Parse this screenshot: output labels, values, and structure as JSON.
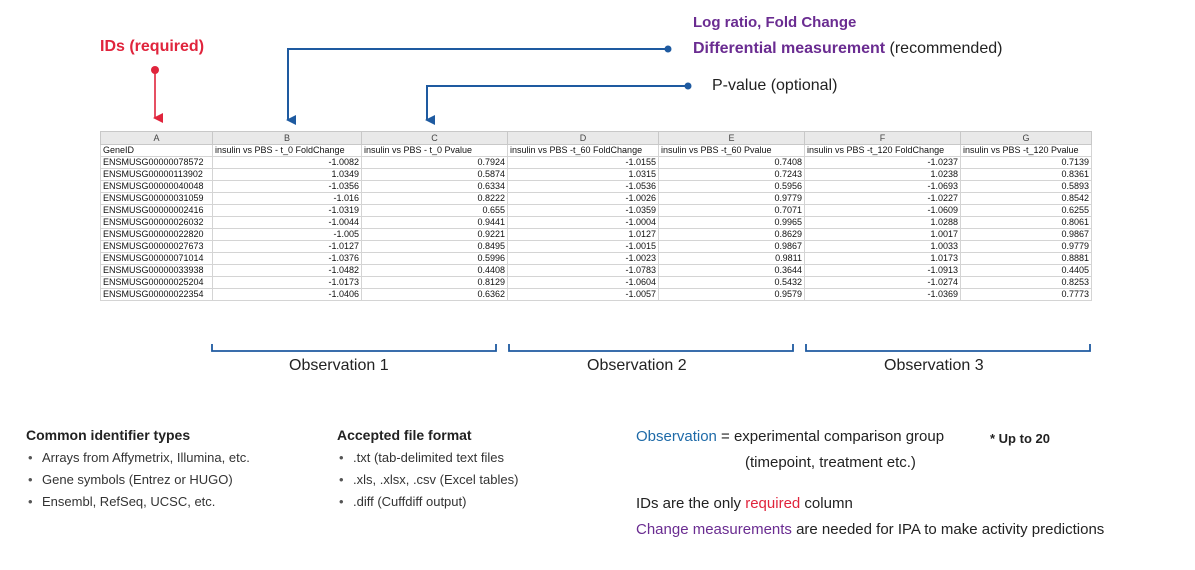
{
  "callouts": {
    "ids": "IDs (required)",
    "log_ratio": "Log ratio, Fold Change",
    "differential_strong": "Differential measurement",
    "differential_rest": " (recommended)",
    "pvalue": "P-value (optional)"
  },
  "sheet": {
    "column_letters": [
      "A",
      "B",
      "C",
      "D",
      "E",
      "F",
      "G"
    ],
    "headers": [
      "GeneID",
      "insulin vs PBS - t_0 FoldChange",
      "insulin vs PBS - t_0 Pvalue",
      "insulin vs PBS -t_60 FoldChange",
      "insulin vs PBS -t_60 Pvalue",
      "insulin vs PBS -t_120 FoldChange",
      "insulin vs PBS -t_120 Pvalue"
    ],
    "rows": [
      [
        "ENSMUSG00000078572",
        "-1.0082",
        "0.7924",
        "-1.0155",
        "0.7408",
        "-1.0237",
        "0.7139"
      ],
      [
        "ENSMUSG00000113902",
        "1.0349",
        "0.5874",
        "1.0315",
        "0.7243",
        "1.0238",
        "0.8361"
      ],
      [
        "ENSMUSG00000040048",
        "-1.0356",
        "0.6334",
        "-1.0536",
        "0.5956",
        "-1.0693",
        "0.5893"
      ],
      [
        "ENSMUSG00000031059",
        "-1.016",
        "0.8222",
        "-1.0026",
        "0.9779",
        "-1.0227",
        "0.8542"
      ],
      [
        "ENSMUSG00000002416",
        "-1.0319",
        "0.655",
        "-1.0359",
        "0.7071",
        "-1.0609",
        "0.6255"
      ],
      [
        "ENSMUSG00000026032",
        "-1.0044",
        "0.9441",
        "-1.0004",
        "0.9965",
        "1.0288",
        "0.8061"
      ],
      [
        "ENSMUSG00000022820",
        "-1.005",
        "0.9221",
        "1.0127",
        "0.8629",
        "1.0017",
        "0.9867"
      ],
      [
        "ENSMUSG00000027673",
        "-1.0127",
        "0.8495",
        "-1.0015",
        "0.9867",
        "1.0033",
        "0.9779"
      ],
      [
        "ENSMUSG00000071014",
        "-1.0376",
        "0.5996",
        "-1.0023",
        "0.9811",
        "1.0173",
        "0.8881"
      ],
      [
        "ENSMUSG00000033938",
        "-1.0482",
        "0.4408",
        "-1.0783",
        "0.3644",
        "-1.0913",
        "0.4405"
      ],
      [
        "ENSMUSG00000025204",
        "-1.0173",
        "0.8129",
        "-1.0604",
        "0.5432",
        "-1.0274",
        "0.8253"
      ],
      [
        "ENSMUSG00000022354",
        "-1.0406",
        "0.6362",
        "-1.0057",
        "0.9579",
        "-1.0369",
        "0.7773"
      ]
    ]
  },
  "observations": [
    "Observation 1",
    "Observation 2",
    "Observation 3"
  ],
  "identifiers": {
    "title": "Common identifier types",
    "items": [
      "Arrays from Affymetrix, Illumina, etc.",
      "Gene symbols (Entrez or HUGO)",
      "Ensembl, RefSeq, UCSC, etc."
    ]
  },
  "formats": {
    "title": "Accepted file format",
    "items": [
      ".txt (tab-delimited text files",
      ".xls, .xlsx, .csv (Excel tables)",
      ".diff (Cuffdiff output)"
    ]
  },
  "notes": {
    "observation_term": "Observation",
    "observation_def": " = experimental comparison group",
    "up_to": "* Up to 20",
    "observation_examples": "(timepoint, treatment etc.)",
    "ids_pre": "IDs are the only ",
    "ids_required": "required",
    "ids_post": " column",
    "change_term": "Change measurements",
    "change_post": " are needed for IPA to make activity predictions"
  },
  "colors": {
    "required_red": "#e0243c",
    "accent_purple": "#6a2c91",
    "bracket_blue": "#1e5aa0"
  }
}
